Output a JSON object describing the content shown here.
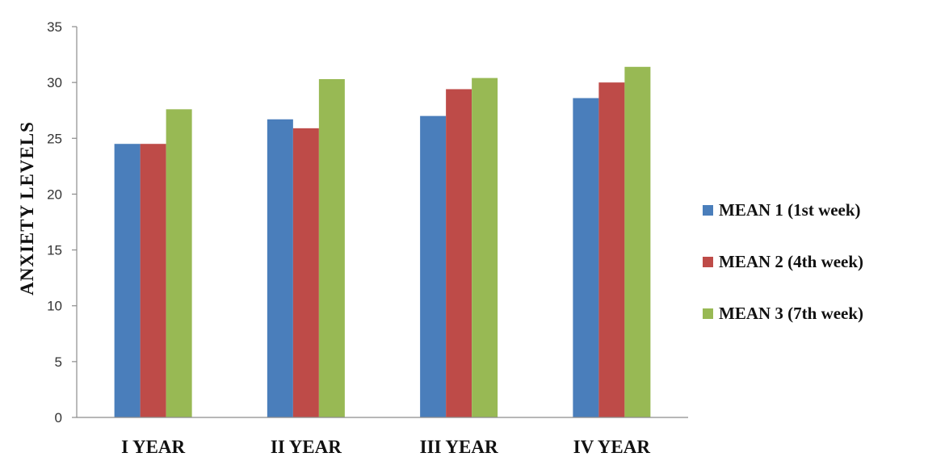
{
  "chart_data": {
    "type": "bar",
    "categories": [
      "I YEAR",
      "II YEAR",
      "III YEAR",
      "IV YEAR"
    ],
    "series": [
      {
        "name": "MEAN 1 (1st week)",
        "color": "#4a7ebb",
        "values": [
          24.5,
          26.7,
          27.0,
          28.6
        ]
      },
      {
        "name": "MEAN 2 (4th week)",
        "color": "#be4b48",
        "values": [
          24.5,
          25.9,
          29.4,
          30.0
        ]
      },
      {
        "name": "MEAN 3 (7th week)",
        "color": "#98b954",
        "values": [
          27.6,
          30.3,
          30.4,
          31.4
        ]
      }
    ],
    "ylabel": "ANXIETY LEVELS",
    "xlabel": "",
    "ylim": [
      0,
      35
    ],
    "yticks": [
      0,
      5,
      10,
      15,
      20,
      25,
      30,
      35
    ],
    "grid": false,
    "legend": "right"
  }
}
